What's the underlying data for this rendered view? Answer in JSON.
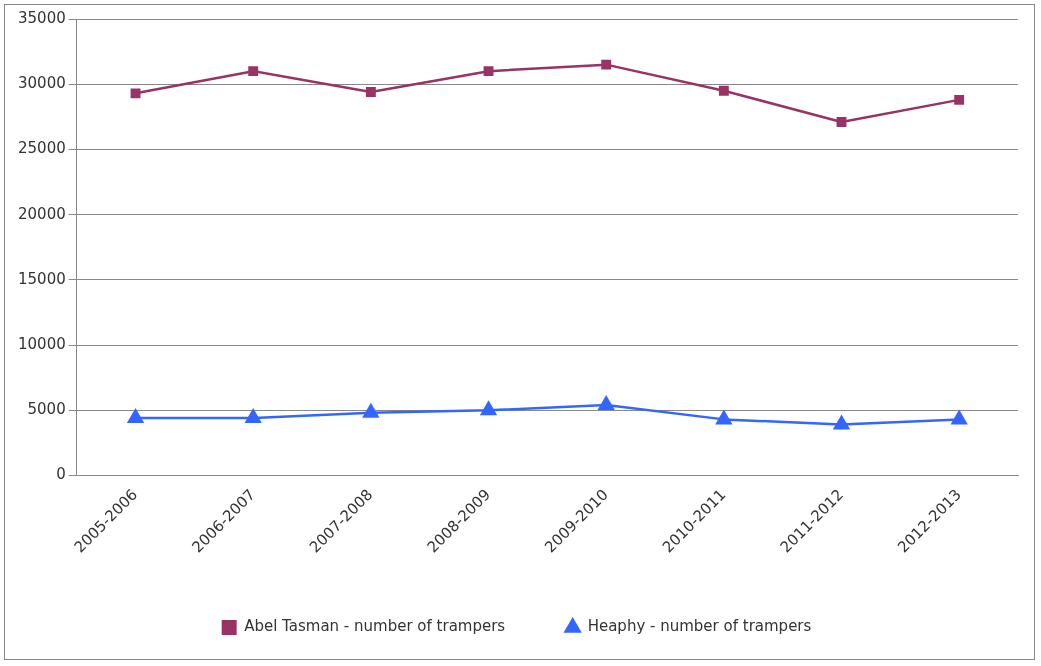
{
  "chart_data": {
    "type": "line",
    "categories": [
      "2005-2006",
      "2006-2007",
      "2007-2008",
      "2008-2009",
      "2009-2010",
      "2010-2011",
      "2011-2012",
      "2012-2013"
    ],
    "series": [
      {
        "name": "Abel Tasman - number of trampers",
        "color": "#993366",
        "marker": "square",
        "values": [
          29300,
          31000,
          29400,
          31000,
          31500,
          29500,
          27100,
          28800
        ]
      },
      {
        "name": "Heaphy - number of trampers",
        "color": "#3366ff",
        "marker": "triangle",
        "values": [
          4400,
          4400,
          4800,
          5000,
          5400,
          4300,
          3900,
          4300
        ]
      }
    ],
    "ylim": [
      0,
      35000
    ],
    "yticks": [
      0,
      5000,
      10000,
      15000,
      20000,
      25000,
      30000,
      35000
    ],
    "grid": "y",
    "legend": "bottom",
    "line_style": "solid"
  }
}
